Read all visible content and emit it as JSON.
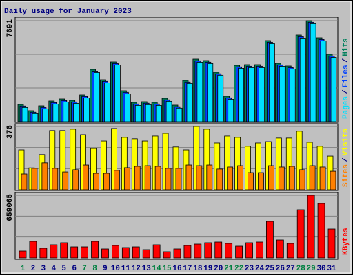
{
  "title": "Daily usage for January 2023",
  "title_color": "#000080",
  "legend_separator": "/",
  "chart_data": [
    {
      "type": "bar",
      "series": [
        {
          "name": "Hits",
          "color": "#00805c",
          "values": [
            1308,
            837,
            1203,
            1569,
            1726,
            1621,
            2040,
            3976,
            3191,
            4552,
            2354,
            1465,
            1517,
            1465,
            1779,
            1256,
            3139,
            4761,
            4656,
            3767,
            1936,
            4290,
            4342,
            4342,
            6173,
            4447,
            4238,
            6592,
            7691,
            6383,
            5127
          ]
        },
        {
          "name": "Files",
          "color": "#0040ff",
          "values": [
            1190,
            720,
            1085,
            1450,
            1605,
            1500,
            1920,
            3850,
            3070,
            4430,
            2235,
            1345,
            1400,
            1345,
            1660,
            1140,
            3020,
            4640,
            4535,
            3650,
            1815,
            4170,
            4220,
            4220,
            6050,
            4325,
            4115,
            6470,
            7570,
            6260,
            5005
          ]
        },
        {
          "name": "Pages",
          "color": "#00e0ff",
          "values": [
            1080,
            610,
            975,
            1340,
            1495,
            1390,
            1810,
            3745,
            2960,
            4320,
            2125,
            1235,
            1290,
            1235,
            1550,
            1030,
            2910,
            4530,
            4425,
            3540,
            1705,
            4060,
            4110,
            4110,
            5940,
            4215,
            4005,
            6360,
            7460,
            6150,
            4895
          ]
        }
      ],
      "ylim": [
        0,
        7691
      ],
      "yticks": [
        7691
      ]
    },
    {
      "type": "bar",
      "series": [
        {
          "name": "Visits",
          "color": "#ffff00",
          "values": [
            237,
            130,
            209,
            352,
            352,
            360,
            327,
            245,
            290,
            364,
            311,
            303,
            290,
            319,
            335,
            254,
            237,
            376,
            360,
            278,
            319,
            311,
            258,
            278,
            286,
            307,
            307,
            348,
            282,
            258,
            200
          ]
        },
        {
          "name": "Sites",
          "color": "#ff8000",
          "values": [
            94,
            127,
            160,
            127,
            106,
            119,
            147,
            98,
            98,
            115,
            131,
            139,
            143,
            139,
            127,
            127,
            147,
            143,
            147,
            123,
            135,
            143,
            102,
            102,
            143,
            135,
            139,
            119,
            143,
            135,
            110
          ]
        }
      ],
      "ylim": [
        0,
        376
      ],
      "yticks": [
        376
      ]
    },
    {
      "type": "bar",
      "categories": [
        "1",
        "2",
        "3",
        "4",
        "5",
        "6",
        "7",
        "8",
        "9",
        "10",
        "11",
        "12",
        "13",
        "14",
        "15",
        "16",
        "17",
        "18",
        "19",
        "20",
        "21",
        "22",
        "23",
        "24",
        "25",
        "26",
        "27",
        "28",
        "29",
        "30",
        "31"
      ],
      "category_color": "#000080",
      "weekend_color": "#008040",
      "weekend_indices": [
        0,
        6,
        7,
        13,
        14,
        20,
        21,
        27,
        28
      ],
      "series": [
        {
          "name": "KBytes",
          "color": "#ff0000",
          "values": [
            72420,
            173811,
            101393,
            137605,
            159327,
            115872,
            115872,
            173808,
            94146,
            130356,
            108630,
            115872,
            86904,
            137598,
            65178,
            94146,
            130356,
            144840,
            159324,
            166566,
            152082,
            123114,
            159324,
            166566,
            383826,
            188292,
            152082,
            506940,
            659065,
            572118,
            304164
          ]
        }
      ],
      "ylim": [
        0,
        659065
      ],
      "yticks": [
        659065
      ]
    }
  ]
}
